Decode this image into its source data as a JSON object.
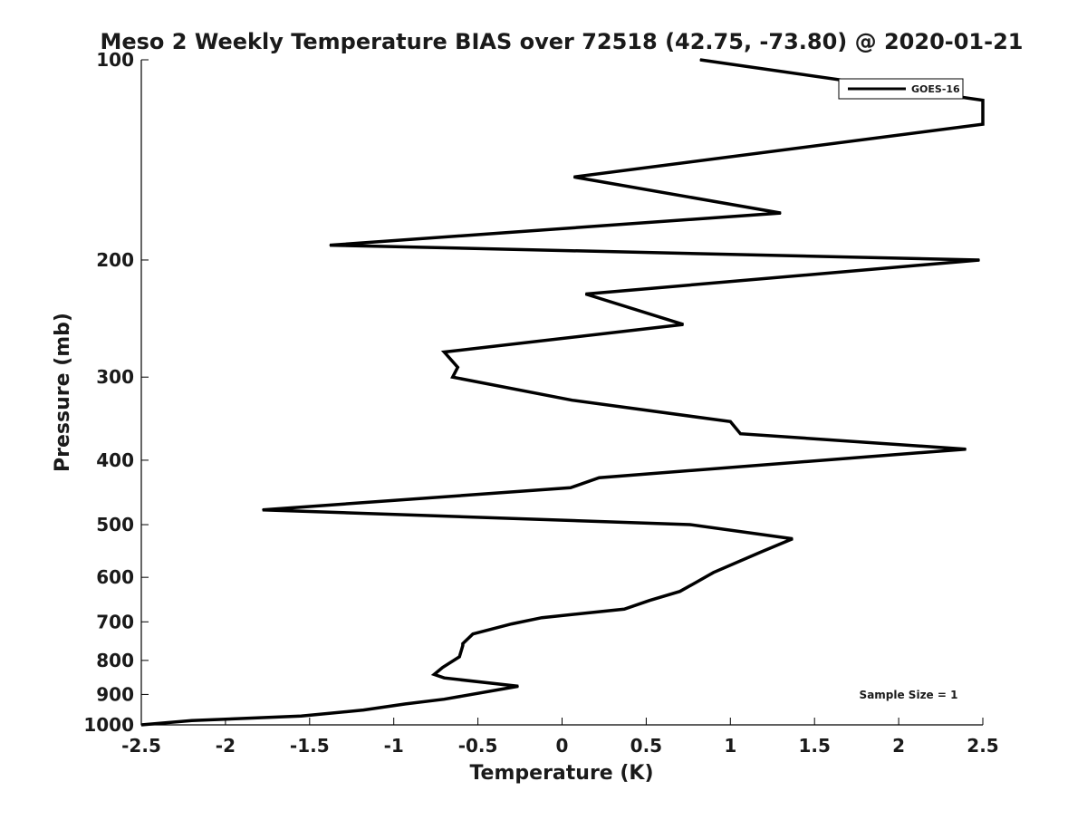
{
  "chart_data": {
    "type": "line",
    "title": "Meso 2 Weekly Temperature BIAS over 72518 (42.75, -73.80) @ 2020-01-21",
    "xlabel": "Temperature (K)",
    "ylabel": "Pressure (mb)",
    "xlim": [
      -2.5,
      2.5
    ],
    "ylim": [
      1000,
      100
    ],
    "yscale": "log",
    "xticks": [
      -2.5,
      -2,
      -1.5,
      -1,
      -0.5,
      0,
      0.5,
      1,
      1.5,
      2,
      2.5
    ],
    "xtick_labels": [
      "-2.5",
      "-2",
      "-1.5",
      "-1",
      "-0.5",
      "0",
      "0.5",
      "1",
      "1.5",
      "2",
      "2.5"
    ],
    "yticks": [
      100,
      200,
      300,
      400,
      500,
      600,
      700,
      800,
      900,
      1000
    ],
    "ytick_labels": [
      "100",
      "200",
      "300",
      "400",
      "500",
      "600",
      "700",
      "800",
      "900",
      "1000"
    ],
    "grid": false,
    "legend_position": "top-right",
    "annotation": "Sample Size = 1",
    "series": [
      {
        "name": "GOES-16",
        "color": "#000000",
        "points": [
          {
            "temp": 0.82,
            "pressure": 100
          },
          {
            "temp": 2.5,
            "pressure": 115
          },
          {
            "temp": 2.5,
            "pressure": 125
          },
          {
            "temp": 0.07,
            "pressure": 150
          },
          {
            "temp": 1.3,
            "pressure": 170
          },
          {
            "temp": -1.38,
            "pressure": 190
          },
          {
            "temp": 2.48,
            "pressure": 200
          },
          {
            "temp": 0.14,
            "pressure": 225
          },
          {
            "temp": 0.72,
            "pressure": 250
          },
          {
            "temp": -0.7,
            "pressure": 275
          },
          {
            "temp": -0.62,
            "pressure": 290
          },
          {
            "temp": -0.65,
            "pressure": 300
          },
          {
            "temp": 0.06,
            "pressure": 325
          },
          {
            "temp": 1.0,
            "pressure": 350
          },
          {
            "temp": 1.06,
            "pressure": 365
          },
          {
            "temp": 2.4,
            "pressure": 385
          },
          {
            "temp": 0.22,
            "pressure": 425
          },
          {
            "temp": 0.05,
            "pressure": 440
          },
          {
            "temp": -1.78,
            "pressure": 475
          },
          {
            "temp": 0.76,
            "pressure": 500
          },
          {
            "temp": 1.37,
            "pressure": 525
          },
          {
            "temp": 1.18,
            "pressure": 550
          },
          {
            "temp": 0.9,
            "pressure": 590
          },
          {
            "temp": 0.8,
            "pressure": 610
          },
          {
            "temp": 0.7,
            "pressure": 630
          },
          {
            "temp": 0.52,
            "pressure": 650
          },
          {
            "temp": 0.37,
            "pressure": 670
          },
          {
            "temp": -0.12,
            "pressure": 690
          },
          {
            "temp": -0.3,
            "pressure": 705
          },
          {
            "temp": -0.53,
            "pressure": 730
          },
          {
            "temp": -0.59,
            "pressure": 755
          },
          {
            "temp": -0.59,
            "pressure": 760
          },
          {
            "temp": -0.61,
            "pressure": 790
          },
          {
            "temp": -0.71,
            "pressure": 820
          },
          {
            "temp": -0.76,
            "pressure": 840
          },
          {
            "temp": -0.7,
            "pressure": 850
          },
          {
            "temp": -0.26,
            "pressure": 875
          },
          {
            "temp": -0.7,
            "pressure": 915
          },
          {
            "temp": -0.93,
            "pressure": 930
          },
          {
            "temp": -1.18,
            "pressure": 950
          },
          {
            "temp": -1.55,
            "pressure": 970
          },
          {
            "temp": -2.2,
            "pressure": 985
          },
          {
            "temp": -2.5,
            "pressure": 1000
          }
        ]
      }
    ]
  }
}
